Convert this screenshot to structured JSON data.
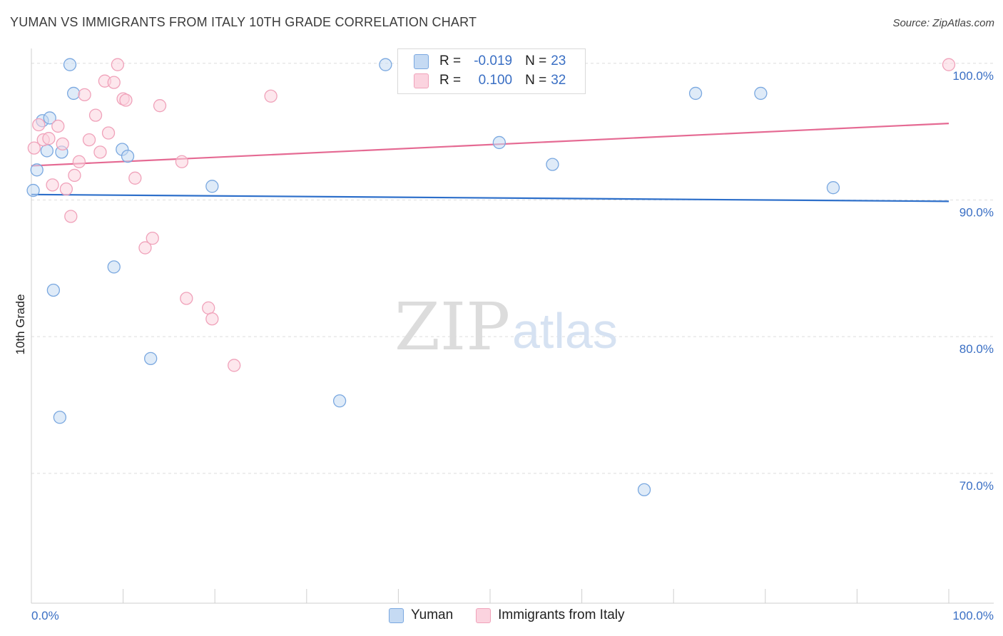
{
  "header": {
    "title": "YUMAN VS IMMIGRANTS FROM ITALY 10TH GRADE CORRELATION CHART",
    "source": "Source: ZipAtlas.com"
  },
  "watermark": {
    "zip": "ZIP",
    "atlas": "atlas"
  },
  "legend": {
    "rows": [
      {
        "r_label": "R =",
        "r_value": "-0.019",
        "n_label": "N =",
        "n_value": "23",
        "color": "#a9c6ec"
      },
      {
        "r_label": "R =",
        "r_value": "0.100",
        "n_label": "N =",
        "n_value": "32",
        "color": "#f6b8cb"
      }
    ]
  },
  "chart_data": {
    "type": "scatter",
    "title": "YUMAN VS IMMIGRANTS FROM ITALY 10TH GRADE CORRELATION CHART",
    "xlabel": "",
    "ylabel": "10th Grade",
    "xlim": [
      0,
      100
    ],
    "ylim": [
      60.5,
      101.5
    ],
    "x_tick_labels": [
      "0.0%",
      "100.0%"
    ],
    "y_ticks": [
      70,
      80,
      90,
      100
    ],
    "y_tick_labels": [
      "70.0%",
      "80.0%",
      "90.0%",
      "100.0%"
    ],
    "grid": true,
    "series": [
      {
        "name": "Yuman",
        "color": "#7aa8e0",
        "fill": "#c5daf3",
        "trend_color": "#2d6fca",
        "trend": {
          "x": [
            0,
            100
          ],
          "y": [
            90.4,
            89.9
          ]
        },
        "points": [
          {
            "x": 0.2,
            "y": 90.7
          },
          {
            "x": 0.6,
            "y": 92.2
          },
          {
            "x": 1.2,
            "y": 95.8
          },
          {
            "x": 1.7,
            "y": 93.6
          },
          {
            "x": 2.0,
            "y": 96.0
          },
          {
            "x": 2.4,
            "y": 83.4
          },
          {
            "x": 3.1,
            "y": 74.1
          },
          {
            "x": 3.3,
            "y": 93.5
          },
          {
            "x": 4.2,
            "y": 99.9
          },
          {
            "x": 4.6,
            "y": 97.8
          },
          {
            "x": 9.0,
            "y": 85.1
          },
          {
            "x": 9.9,
            "y": 93.7
          },
          {
            "x": 10.5,
            "y": 93.2
          },
          {
            "x": 13.0,
            "y": 78.4
          },
          {
            "x": 19.7,
            "y": 91.0
          },
          {
            "x": 33.6,
            "y": 75.3
          },
          {
            "x": 38.6,
            "y": 99.9
          },
          {
            "x": 51.0,
            "y": 94.2
          },
          {
            "x": 56.8,
            "y": 92.6
          },
          {
            "x": 66.8,
            "y": 68.8
          },
          {
            "x": 72.4,
            "y": 97.8
          },
          {
            "x": 79.5,
            "y": 97.8
          },
          {
            "x": 87.4,
            "y": 90.9
          }
        ]
      },
      {
        "name": "Immigrants from Italy",
        "color": "#f0a2ba",
        "fill": "#fbd3df",
        "trend_color": "#e56a93",
        "trend": {
          "x": [
            0,
            100
          ],
          "y": [
            92.5,
            95.6
          ]
        },
        "points": [
          {
            "x": 0.3,
            "y": 93.8
          },
          {
            "x": 0.8,
            "y": 95.5
          },
          {
            "x": 1.3,
            "y": 94.4
          },
          {
            "x": 1.9,
            "y": 94.5
          },
          {
            "x": 2.3,
            "y": 91.1
          },
          {
            "x": 2.9,
            "y": 95.4
          },
          {
            "x": 3.4,
            "y": 94.1
          },
          {
            "x": 3.8,
            "y": 90.8
          },
          {
            "x": 4.3,
            "y": 88.8
          },
          {
            "x": 4.7,
            "y": 91.8
          },
          {
            "x": 5.2,
            "y": 92.8
          },
          {
            "x": 5.8,
            "y": 97.7
          },
          {
            "x": 6.3,
            "y": 94.4
          },
          {
            "x": 7.0,
            "y": 96.2
          },
          {
            "x": 7.5,
            "y": 93.5
          },
          {
            "x": 8.0,
            "y": 98.7
          },
          {
            "x": 8.4,
            "y": 94.9
          },
          {
            "x": 9.0,
            "y": 98.6
          },
          {
            "x": 9.4,
            "y": 99.9
          },
          {
            "x": 10.0,
            "y": 97.4
          },
          {
            "x": 10.3,
            "y": 97.3
          },
          {
            "x": 11.3,
            "y": 91.6
          },
          {
            "x": 12.4,
            "y": 86.5
          },
          {
            "x": 13.2,
            "y": 87.2
          },
          {
            "x": 14.0,
            "y": 96.9
          },
          {
            "x": 16.4,
            "y": 92.8
          },
          {
            "x": 16.9,
            "y": 82.8
          },
          {
            "x": 19.3,
            "y": 82.1
          },
          {
            "x": 19.7,
            "y": 81.3
          },
          {
            "x": 22.1,
            "y": 77.9
          },
          {
            "x": 26.1,
            "y": 97.6
          },
          {
            "x": 100.0,
            "y": 99.9
          }
        ]
      }
    ]
  }
}
